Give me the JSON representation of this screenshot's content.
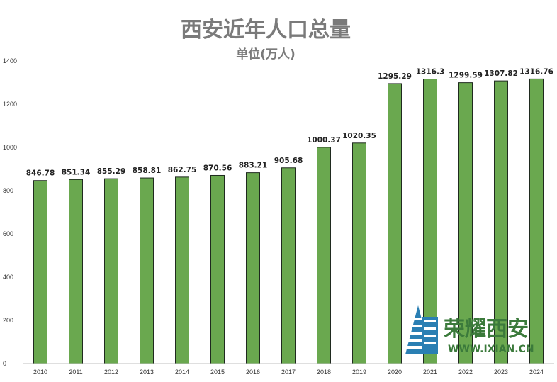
{
  "chart_data": {
    "type": "bar",
    "title": "西安近年人口总量",
    "subtitle": "单位(万人)",
    "xlabel": "",
    "ylabel": "",
    "ylim": [
      0,
      1400
    ],
    "yticks": [
      0,
      200,
      400,
      600,
      800,
      1000,
      1200,
      1400
    ],
    "categories": [
      "2010",
      "2011",
      "2012",
      "2013",
      "2014",
      "2015",
      "2016",
      "2017",
      "2018",
      "2019",
      "2020",
      "2021",
      "2022",
      "2023",
      "2024"
    ],
    "values": [
      846.78,
      851.34,
      855.29,
      858.81,
      862.75,
      870.56,
      883.21,
      905.68,
      1000.37,
      1020.35,
      1295.29,
      1316.3,
      1299.59,
      1307.82,
      1316.76
    ],
    "value_labels": [
      "846.78",
      "851.34",
      "855.29",
      "858.81",
      "862.75",
      "870.56",
      "883.21",
      "905.68",
      "1000.37",
      "1020.35",
      "1295.29",
      "1316.3",
      "1299.59",
      "1307.82",
      "1316.76"
    ],
    "bar_color": "#6aa84f",
    "bar_edge_color": "#1f2a1f",
    "grid": false,
    "legend": "none"
  },
  "watermark": {
    "name": "荣耀西安",
    "url": "WWW.IXIAN.CN",
    "color": "#3b7a3b",
    "icon": "building-logo-icon"
  }
}
